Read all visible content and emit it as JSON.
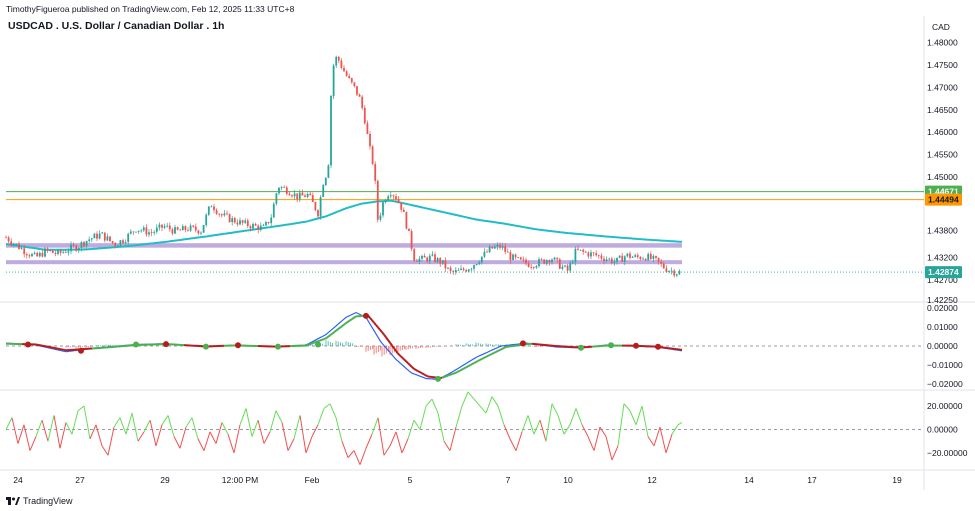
{
  "header": {
    "publisher": "TimothyFigueroa published on TradingView.com, Feb 12, 2025 11:33 UTC+8",
    "title": "USDCAD . U.S. Dollar / Canadian Dollar . 1h",
    "currency": "CAD"
  },
  "brand": {
    "name": "TradingView",
    "logo_icon": "tradingview-logo-icon"
  },
  "colors": {
    "up": "#26a69a",
    "down": "#ef5350",
    "ma": "#22bcc8",
    "zone": "#b39ddb",
    "level_green": "#4caf50",
    "level_orange": "#ff9800",
    "current": "#26a69a",
    "macd_fast": "#2962ff",
    "macd_green": "#4caf50",
    "macd_red": "#b71c1c",
    "osc_green": "#66dd55",
    "osc_red": "#f05050"
  },
  "chart_data": [
    {
      "type": "candlestick",
      "panel": "price",
      "ylim": [
        1.4225,
        1.4815
      ],
      "y_ticks": [
        "1.48000",
        "1.47500",
        "1.47000",
        "1.46500",
        "1.46000",
        "1.45500",
        "1.45000",
        "1.43800",
        "1.43200",
        "1.42700",
        "1.42250"
      ],
      "x_ticks": [
        "24",
        "27",
        "29",
        "12:00 PM",
        "Feb",
        "5",
        "7",
        "10",
        "12",
        "14",
        "17",
        "19"
      ],
      "close_path": [
        [
          0,
          1.4365
        ],
        [
          12,
          1.4345
        ],
        [
          22,
          1.433
        ],
        [
          30,
          1.432
        ],
        [
          40,
          1.4335
        ],
        [
          52,
          1.4328
        ],
        [
          62,
          1.4338
        ],
        [
          72,
          1.4345
        ],
        [
          82,
          1.436
        ],
        [
          95,
          1.4372
        ],
        [
          108,
          1.435
        ],
        [
          118,
          1.436
        ],
        [
          130,
          1.4385
        ],
        [
          145,
          1.4375
        ],
        [
          158,
          1.439
        ],
        [
          170,
          1.4378
        ],
        [
          182,
          1.4385
        ],
        [
          195,
          1.438
        ],
        [
          205,
          1.444
        ],
        [
          215,
          1.4415
        ],
        [
          225,
          1.4405
        ],
        [
          238,
          1.4395
        ],
        [
          248,
          1.439
        ],
        [
          258,
          1.4385
        ],
        [
          265,
          1.441
        ],
        [
          272,
          1.448
        ],
        [
          282,
          1.447
        ],
        [
          292,
          1.4455
        ],
        [
          302,
          1.446
        ],
        [
          312,
          1.442
        ],
        [
          318,
          1.45
        ],
        [
          322,
          1.451
        ],
        [
          326,
          1.474
        ],
        [
          331,
          1.477
        ],
        [
          336,
          1.4745
        ],
        [
          342,
          1.472
        ],
        [
          348,
          1.47
        ],
        [
          353,
          1.468
        ],
        [
          358,
          1.464
        ],
        [
          363,
          1.457
        ],
        [
          368,
          1.452
        ],
        [
          372,
          1.44
        ],
        [
          378,
          1.445
        ],
        [
          384,
          1.447
        ],
        [
          390,
          1.4455
        ],
        [
          396,
          1.443
        ],
        [
          402,
          1.438
        ],
        [
          408,
          1.432
        ],
        [
          415,
          1.4315
        ],
        [
          425,
          1.432
        ],
        [
          435,
          1.431
        ],
        [
          445,
          1.4285
        ],
        [
          455,
          1.429
        ],
        [
          465,
          1.43
        ],
        [
          475,
          1.432
        ],
        [
          485,
          1.434
        ],
        [
          495,
          1.4345
        ],
        [
          505,
          1.432
        ],
        [
          515,
          1.431
        ],
        [
          525,
          1.4305
        ],
        [
          535,
          1.431
        ],
        [
          545,
          1.432
        ],
        [
          555,
          1.43
        ],
        [
          562,
          1.429
        ],
        [
          570,
          1.4335
        ],
        [
          580,
          1.433
        ],
        [
          590,
          1.4325
        ],
        [
          600,
          1.4318
        ],
        [
          610,
          1.431
        ],
        [
          620,
          1.4325
        ],
        [
          630,
          1.432
        ],
        [
          640,
          1.4322
        ],
        [
          650,
          1.4312
        ],
        [
          660,
          1.4295
        ],
        [
          670,
          1.4287
        ],
        [
          676,
          1.4287
        ]
      ],
      "moving_average": [
        [
          0,
          1.435
        ],
        [
          40,
          1.4337
        ],
        [
          80,
          1.4338
        ],
        [
          120,
          1.4345
        ],
        [
          160,
          1.4355
        ],
        [
          200,
          1.4367
        ],
        [
          240,
          1.438
        ],
        [
          280,
          1.4393
        ],
        [
          300,
          1.44
        ],
        [
          320,
          1.4412
        ],
        [
          340,
          1.443
        ],
        [
          355,
          1.444
        ],
        [
          370,
          1.4445
        ],
        [
          385,
          1.4447
        ],
        [
          400,
          1.444
        ],
        [
          420,
          1.443
        ],
        [
          440,
          1.442
        ],
        [
          470,
          1.4405
        ],
        [
          500,
          1.4395
        ],
        [
          530,
          1.4383
        ],
        [
          560,
          1.4375
        ],
        [
          600,
          1.4367
        ],
        [
          640,
          1.436
        ],
        [
          676,
          1.4355
        ]
      ],
      "zones": [
        [
          1.4342,
          1.4352
        ],
        [
          1.4305,
          1.4314
        ]
      ],
      "levels": [
        {
          "label": "1.44671",
          "value": 1.44671,
          "color": "#4caf50"
        },
        {
          "label": "1.44494",
          "value": 1.44494,
          "color": "#ff9800"
        }
      ],
      "current_price": {
        "label": "1.42874",
        "value": 1.42874
      }
    },
    {
      "type": "line",
      "panel": "macd",
      "ylim": [
        -0.022,
        0.022
      ],
      "y_ticks": [
        "0.02000",
        "0.01000",
        "0.00000",
        "-0.01000",
        "-0.02000"
      ],
      "fast": [
        [
          0,
          0.0015
        ],
        [
          30,
          0.0005
        ],
        [
          60,
          -0.003
        ],
        [
          90,
          -0.001
        ],
        [
          130,
          0.0008
        ],
        [
          160,
          0.0012
        ],
        [
          200,
          -0.0005
        ],
        [
          230,
          0.0005
        ],
        [
          270,
          -0.0005
        ],
        [
          300,
          0.0005
        ],
        [
          320,
          0.006
        ],
        [
          340,
          0.015
        ],
        [
          350,
          0.0175
        ],
        [
          360,
          0.015
        ],
        [
          375,
          0.002
        ],
        [
          390,
          -0.007
        ],
        [
          405,
          -0.014
        ],
        [
          420,
          -0.017
        ],
        [
          432,
          -0.0175
        ],
        [
          445,
          -0.014
        ],
        [
          470,
          -0.006
        ],
        [
          495,
          0.0
        ],
        [
          520,
          0.0015
        ],
        [
          550,
          -0.0005
        ],
        [
          575,
          -0.001
        ],
        [
          600,
          0.0005
        ],
        [
          625,
          0.0
        ],
        [
          650,
          -0.0005
        ],
        [
          676,
          -0.0025
        ]
      ],
      "slow": [
        [
          0,
          0.0012
        ],
        [
          30,
          0.0008
        ],
        [
          60,
          -0.0022
        ],
        [
          90,
          -0.0012
        ],
        [
          130,
          0.0005
        ],
        [
          160,
          0.001
        ],
        [
          200,
          -0.0002
        ],
        [
          230,
          0.0003
        ],
        [
          270,
          -0.0003
        ],
        [
          300,
          0.0002
        ],
        [
          320,
          0.004
        ],
        [
          340,
          0.012
        ],
        [
          350,
          0.0155
        ],
        [
          362,
          0.016
        ],
        [
          378,
          0.006
        ],
        [
          392,
          -0.004
        ],
        [
          408,
          -0.012
        ],
        [
          422,
          -0.016
        ],
        [
          435,
          -0.0168
        ],
        [
          450,
          -0.014
        ],
        [
          475,
          -0.007
        ],
        [
          500,
          -0.0005
        ],
        [
          525,
          0.0012
        ],
        [
          550,
          0.0
        ],
        [
          575,
          -0.0008
        ],
        [
          600,
          0.0002
        ],
        [
          625,
          0.0002
        ],
        [
          650,
          -0.0003
        ],
        [
          676,
          -0.002
        ]
      ],
      "histogram": [
        [
          60,
          -0.0008
        ],
        [
          70,
          -0.0012
        ],
        [
          80,
          -0.0008
        ],
        [
          90,
          0.0005
        ],
        [
          100,
          0.0008
        ],
        [
          110,
          0.0004
        ],
        [
          280,
          0.0004
        ],
        [
          290,
          0.0008
        ],
        [
          300,
          0.0012
        ],
        [
          310,
          0.0022
        ],
        [
          320,
          0.003
        ],
        [
          330,
          0.0028
        ],
        [
          340,
          0.0025
        ],
        [
          350,
          -0.0006
        ],
        [
          360,
          -0.003
        ],
        [
          368,
          -0.0045
        ],
        [
          376,
          -0.0055
        ],
        [
          384,
          -0.0048
        ],
        [
          392,
          -0.003
        ],
        [
          400,
          -0.002
        ],
        [
          410,
          -0.0015
        ],
        [
          420,
          -0.001
        ],
        [
          430,
          -0.0005
        ],
        [
          450,
          0.001
        ],
        [
          460,
          0.0014
        ],
        [
          470,
          0.0018
        ],
        [
          480,
          0.0014
        ],
        [
          490,
          0.001
        ],
        [
          500,
          0.0006
        ],
        [
          520,
          -0.0004
        ],
        [
          530,
          -0.0006
        ],
        [
          600,
          0.0004
        ],
        [
          610,
          0.0004
        ],
        [
          640,
          -0.0004
        ],
        [
          650,
          -0.0005
        ]
      ],
      "cross_dots": [
        {
          "x": 22,
          "y": 0.0008,
          "color": "red"
        },
        {
          "x": 75,
          "y": -0.0025,
          "color": "red"
        },
        {
          "x": 130,
          "y": 0.0008,
          "color": "green"
        },
        {
          "x": 160,
          "y": 0.001,
          "color": "red"
        },
        {
          "x": 200,
          "y": -0.0003,
          "color": "green"
        },
        {
          "x": 232,
          "y": 0.0004,
          "color": "red"
        },
        {
          "x": 272,
          "y": -0.0003,
          "color": "green"
        },
        {
          "x": 312,
          "y": 0.0008,
          "color": "green"
        },
        {
          "x": 360,
          "y": 0.0158,
          "color": "red"
        },
        {
          "x": 432,
          "y": -0.0172,
          "color": "green"
        },
        {
          "x": 517,
          "y": 0.0014,
          "color": "red"
        },
        {
          "x": 575,
          "y": -0.0009,
          "color": "green"
        },
        {
          "x": 605,
          "y": 0.0004,
          "color": "green"
        },
        {
          "x": 630,
          "y": 0.0001,
          "color": "red"
        },
        {
          "x": 652,
          "y": -0.0004,
          "color": "red"
        }
      ]
    },
    {
      "type": "line",
      "panel": "oscillator",
      "ylim": [
        -32,
        32
      ],
      "y_ticks": [
        "20.00000",
        "0.00000",
        "-20.00000"
      ],
      "series": [
        [
          0,
          0
        ],
        [
          6,
          10
        ],
        [
          12,
          -12
        ],
        [
          18,
          4
        ],
        [
          24,
          -18
        ],
        [
          30,
          -6
        ],
        [
          36,
          8
        ],
        [
          42,
          -10
        ],
        [
          48,
          12
        ],
        [
          54,
          -16
        ],
        [
          60,
          6
        ],
        [
          66,
          -4
        ],
        [
          72,
          16
        ],
        [
          78,
          20
        ],
        [
          84,
          -8
        ],
        [
          90,
          4
        ],
        [
          96,
          -14
        ],
        [
          102,
          -22
        ],
        [
          108,
          2
        ],
        [
          114,
          10
        ],
        [
          120,
          -4
        ],
        [
          126,
          14
        ],
        [
          132,
          -10
        ],
        [
          138,
          -2
        ],
        [
          144,
          8
        ],
        [
          150,
          -14
        ],
        [
          156,
          4
        ],
        [
          162,
          12
        ],
        [
          168,
          -6
        ],
        [
          174,
          -16
        ],
        [
          180,
          2
        ],
        [
          186,
          10
        ],
        [
          192,
          -8
        ],
        [
          198,
          -18
        ],
        [
          204,
          -2
        ],
        [
          210,
          -12
        ],
        [
          216,
          6
        ],
        [
          222,
          -4
        ],
        [
          228,
          -20
        ],
        [
          234,
          4
        ],
        [
          240,
          18
        ],
        [
          246,
          -6
        ],
        [
          252,
          8
        ],
        [
          258,
          -12
        ],
        [
          264,
          -2
        ],
        [
          270,
          16
        ],
        [
          276,
          6
        ],
        [
          282,
          -18
        ],
        [
          288,
          -8
        ],
        [
          294,
          12
        ],
        [
          300,
          -20
        ],
        [
          306,
          -6
        ],
        [
          312,
          4
        ],
        [
          318,
          18
        ],
        [
          324,
          22
        ],
        [
          330,
          10
        ],
        [
          336,
          -10
        ],
        [
          342,
          -24
        ],
        [
          348,
          -18
        ],
        [
          354,
          -30
        ],
        [
          360,
          -16
        ],
        [
          366,
          -4
        ],
        [
          372,
          10
        ],
        [
          378,
          -22
        ],
        [
          384,
          -14
        ],
        [
          390,
          -2
        ],
        [
          396,
          -20
        ],
        [
          402,
          -8
        ],
        [
          408,
          8
        ],
        [
          414,
          0
        ],
        [
          420,
          20
        ],
        [
          426,
          26
        ],
        [
          432,
          14
        ],
        [
          438,
          -10
        ],
        [
          444,
          -18
        ],
        [
          450,
          2
        ],
        [
          456,
          20
        ],
        [
          462,
          32
        ],
        [
          468,
          26
        ],
        [
          474,
          20
        ],
        [
          480,
          14
        ],
        [
          486,
          28
        ],
        [
          492,
          20
        ],
        [
          498,
          4
        ],
        [
          504,
          -8
        ],
        [
          510,
          -18
        ],
        [
          516,
          -2
        ],
        [
          522,
          12
        ],
        [
          528,
          -4
        ],
        [
          534,
          8
        ],
        [
          540,
          -10
        ],
        [
          546,
          22
        ],
        [
          552,
          12
        ],
        [
          558,
          -4
        ],
        [
          564,
          4
        ],
        [
          570,
          18
        ],
        [
          576,
          4
        ],
        [
          582,
          -6
        ],
        [
          588,
          -18
        ],
        [
          594,
          2
        ],
        [
          600,
          -6
        ],
        [
          606,
          -26
        ],
        [
          612,
          -14
        ],
        [
          618,
          22
        ],
        [
          624,
          16
        ],
        [
          630,
          4
        ],
        [
          636,
          20
        ],
        [
          642,
          -6
        ],
        [
          648,
          -14
        ],
        [
          654,
          2
        ],
        [
          660,
          -20
        ],
        [
          666,
          -4
        ],
        [
          672,
          4
        ],
        [
          676,
          6
        ]
      ]
    }
  ]
}
